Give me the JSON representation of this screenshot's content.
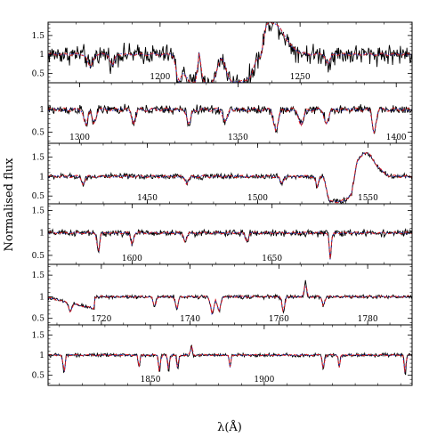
{
  "chart_data": {
    "type": "line",
    "ylabel": "Normalised flux",
    "xlabel": "λ(Å)",
    "colors": {
      "observed": "#000000",
      "model_red": "#e31a1c",
      "model_blue": "#2b2bd6"
    },
    "series_styles": [
      {
        "key": "observed",
        "color": "#000000",
        "dash": "solid"
      },
      {
        "key": "model_red",
        "color": "#e31a1c",
        "dash": "dashed"
      },
      {
        "key": "model_blue",
        "color": "#2b2bd6",
        "dash": "dotted"
      }
    ],
    "panels": [
      {
        "xlim": [
          1160,
          1290
        ],
        "ylim": [
          0.25,
          1.85
        ],
        "x_ticks": [
          1200,
          1250
        ],
        "x_tick_labels": [
          "1200",
          "1250"
        ],
        "y_ticks": [
          0.5,
          1,
          1.5
        ],
        "y_tick_labels": [
          "0.5",
          "1",
          "1.5"
        ],
        "features": [
          {
            "x": 1175,
            "depth": 0.35,
            "width": 1.2
          },
          {
            "x": 1183,
            "depth": 0.3,
            "width": 1.0
          },
          {
            "x": 1206.5,
            "depth": 0.5,
            "width": 1.2
          },
          {
            "x": 1236,
            "depth": 0.3,
            "width": 1.0
          },
          {
            "x": 1260,
            "depth": 0.25,
            "width": 1.0
          }
        ],
        "profiles": [
          {
            "kind": "trough",
            "x0": 1205,
            "x1": 1238,
            "level": 0.25
          },
          {
            "kind": "spike",
            "x": 1214,
            "height": 0.8,
            "width": 0.8
          },
          {
            "kind": "spike",
            "x": 1222,
            "height": 0.65,
            "width": 2.0
          },
          {
            "kind": "emission",
            "x": 1240,
            "height": 0.85,
            "width": 6.0
          }
        ],
        "noise": 0.18,
        "model_offset": 0.03
      },
      {
        "xlim": [
          1290,
          1405
        ],
        "ylim": [
          0.25,
          1.6
        ],
        "x_ticks": [
          1300,
          1350,
          1400
        ],
        "x_tick_labels": [
          "1300",
          "1350",
          "1400"
        ],
        "y_ticks": [
          0.5,
          1
        ],
        "y_tick_labels": [
          "0.5",
          "1"
        ],
        "features": [
          {
            "x": 1302,
            "depth": 0.35,
            "width": 0.8
          },
          {
            "x": 1304.5,
            "depth": 0.3,
            "width": 0.8
          },
          {
            "x": 1317,
            "depth": 0.3,
            "width": 0.8
          },
          {
            "x": 1334.5,
            "depth": 0.35,
            "width": 0.8
          },
          {
            "x": 1346,
            "depth": 0.25,
            "width": 1.0
          },
          {
            "x": 1362,
            "depth": 0.45,
            "width": 1.0
          },
          {
            "x": 1370,
            "depth": 0.35,
            "width": 1.0
          },
          {
            "x": 1378,
            "depth": 0.3,
            "width": 1.0
          },
          {
            "x": 1393,
            "depth": 0.5,
            "width": 0.8
          }
        ],
        "profiles": [],
        "noise": 0.07,
        "model_offset": 0.04
      },
      {
        "xlim": [
          1405,
          1570
        ],
        "ylim": [
          0.3,
          1.85
        ],
        "x_ticks": [
          1450,
          1500,
          1550
        ],
        "x_tick_labels": [
          "1450",
          "1500",
          "1550"
        ],
        "y_ticks": [
          0.5,
          1,
          1.5
        ],
        "y_tick_labels": [
          "0.5",
          "1",
          "1.5"
        ],
        "features": [
          {
            "x": 1421,
            "depth": 0.2,
            "width": 1.0
          },
          {
            "x": 1468,
            "depth": 0.2,
            "width": 1.0
          },
          {
            "x": 1511,
            "depth": 0.2,
            "width": 1.0
          },
          {
            "x": 1527,
            "depth": 0.3,
            "width": 0.8
          }
        ],
        "profiles": [
          {
            "kind": "trough",
            "x0": 1530,
            "x1": 1545,
            "level": 0.35
          },
          {
            "kind": "emission",
            "x": 1549,
            "height": 0.6,
            "width": 6.0
          }
        ],
        "noise": 0.05,
        "model_offset": 0.03
      },
      {
        "xlim": [
          1570,
          1700
        ],
        "ylim": [
          0.3,
          1.65
        ],
        "x_ticks": [
          1600,
          1650
        ],
        "x_tick_labels": [
          "1600",
          "1650"
        ],
        "y_ticks": [
          0.5,
          1,
          1.5
        ],
        "y_tick_labels": [
          "0.5",
          "1",
          "1.5"
        ],
        "features": [
          {
            "x": 1588,
            "depth": 0.45,
            "width": 0.6
          },
          {
            "x": 1600,
            "depth": 0.25,
            "width": 0.7
          },
          {
            "x": 1619,
            "depth": 0.2,
            "width": 0.7
          },
          {
            "x": 1641,
            "depth": 0.2,
            "width": 0.7
          },
          {
            "x": 1670.8,
            "depth": 0.6,
            "width": 0.5
          }
        ],
        "profiles": [],
        "noise": 0.05,
        "model_offset": 0.02
      },
      {
        "xlim": [
          1708,
          1790
        ],
        "ylim": [
          0.35,
          1.75
        ],
        "x_ticks": [
          1720,
          1740,
          1760,
          1780
        ],
        "x_tick_labels": [
          "1720",
          "1740",
          "1760",
          "1780"
        ],
        "y_ticks": [
          0.5,
          1,
          1.5
        ],
        "y_tick_labels": [
          "0.5",
          "1",
          "1.5"
        ],
        "features": [
          {
            "x": 1713,
            "depth": 0.2,
            "width": 0.5
          },
          {
            "x": 1732,
            "depth": 0.25,
            "width": 0.4
          },
          {
            "x": 1737,
            "depth": 0.3,
            "width": 0.4
          },
          {
            "x": 1745,
            "depth": 0.4,
            "width": 0.5
          },
          {
            "x": 1746.5,
            "depth": 0.35,
            "width": 0.5
          },
          {
            "x": 1761,
            "depth": 0.35,
            "width": 0.4
          },
          {
            "x": 1770,
            "depth": 0.2,
            "width": 0.4
          }
        ],
        "profiles": [
          {
            "kind": "step",
            "x0": 1708,
            "x1": 1718.5,
            "from": 0.98,
            "to": 0.72
          },
          {
            "kind": "spike",
            "x": 1766,
            "height": 0.35,
            "width": 0.3
          }
        ],
        "noise": 0.03,
        "model_offset": 0.015
      },
      {
        "xlim": [
          1805,
          1965
        ],
        "ylim": [
          0.25,
          1.75
        ],
        "x_ticks": [
          1850,
          1900
        ],
        "x_tick_labels": [
          "1850",
          "1900"
        ],
        "y_ticks": [
          0.5,
          1,
          1.5
        ],
        "y_tick_labels": [
          "0.5",
          "1",
          "1.5"
        ],
        "features": [
          {
            "x": 1812,
            "depth": 0.45,
            "width": 0.6
          },
          {
            "x": 1845,
            "depth": 0.3,
            "width": 0.5
          },
          {
            "x": 1854,
            "depth": 0.45,
            "width": 0.5
          },
          {
            "x": 1858,
            "depth": 0.4,
            "width": 0.5
          },
          {
            "x": 1862,
            "depth": 0.35,
            "width": 0.5
          },
          {
            "x": 1885,
            "depth": 0.3,
            "width": 0.5
          },
          {
            "x": 1926,
            "depth": 0.35,
            "width": 0.6
          },
          {
            "x": 1933,
            "depth": 0.3,
            "width": 0.5
          },
          {
            "x": 1962,
            "depth": 0.5,
            "width": 0.5
          }
        ],
        "profiles": [
          {
            "kind": "spike",
            "x": 1868,
            "height": 0.25,
            "width": 0.5
          }
        ],
        "noise": 0.03,
        "model_offset": 0.015
      }
    ]
  }
}
